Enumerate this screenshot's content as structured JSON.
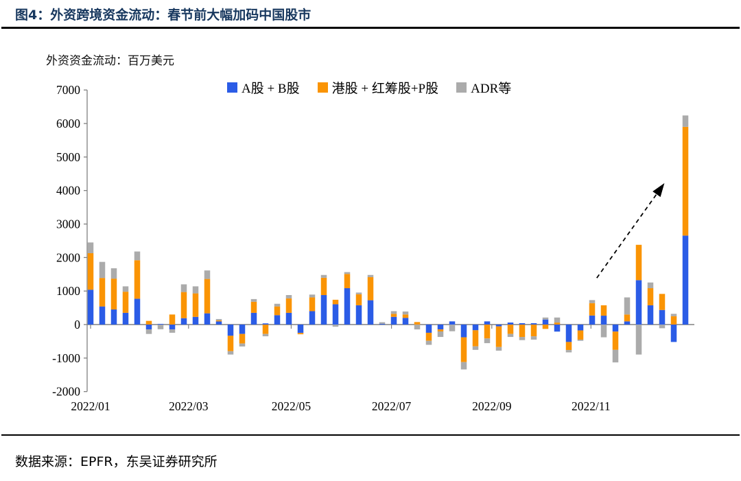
{
  "header": {
    "title": "图4：外资跨境资金流动：春节前大幅加码中国股市"
  },
  "footer": {
    "source": "数据来源：EPFR，东吴证券研究所"
  },
  "chart_data": {
    "type": "bar",
    "stacked": true,
    "unit_label": "外资资金流动：百万美元",
    "ylim": [
      -2000,
      7000
    ],
    "yticks": [
      7000,
      6000,
      5000,
      4000,
      3000,
      2000,
      1000,
      0,
      -1000,
      -2000
    ],
    "grid": false,
    "legend_position": "top",
    "legend": [
      {
        "name": "A股 + B股",
        "color": "#2B5CE6"
      },
      {
        "name": "港股 + 红筹股+P股",
        "color": "#FA9404"
      },
      {
        "name": "ADR等",
        "color": "#ABABAB"
      }
    ],
    "x_ticks": [
      {
        "label": "2022/01",
        "week": 0
      },
      {
        "label": "2022/03",
        "week": 8.4
      },
      {
        "label": "2022/05",
        "week": 17.2
      },
      {
        "label": "2022/07",
        "week": 25.8
      },
      {
        "label": "2022/09",
        "week": 34.4
      },
      {
        "label": "2022/11",
        "week": 42.9
      }
    ],
    "series": [
      {
        "name": "A股 + B股",
        "color": "#2B5CE6",
        "values": [
          1040,
          540,
          450,
          350,
          770,
          -145,
          20,
          -145,
          190,
          230,
          335,
          95,
          -335,
          -280,
          350,
          35,
          280,
          350,
          -250,
          400,
          880,
          605,
          1085,
          575,
          725,
          20,
          230,
          200,
          0,
          -245,
          -145,
          95,
          -380,
          -170,
          95,
          -55,
          60,
          40,
          40,
          150,
          -210,
          -520,
          -175,
          270,
          265,
          -210,
          95,
          1325,
          575,
          435,
          -520,
          2655
        ]
      },
      {
        "name": "港股 + 红筹股+P股",
        "color": "#FA9404",
        "values": [
          1090,
          850,
          920,
          630,
          1150,
          110,
          0,
          300,
          780,
          700,
          1025,
          30,
          -460,
          -285,
          330,
          -280,
          260,
          430,
          -40,
          410,
          515,
          135,
          425,
          330,
          690,
          0,
          90,
          100,
          75,
          -240,
          -60,
          0,
          -740,
          -480,
          -415,
          -615,
          -280,
          -370,
          -350,
          -130,
          60,
          -240,
          -275,
          370,
          310,
          -545,
          205,
          1055,
          510,
          480,
          250,
          3245
        ]
      },
      {
        "name": "ADR等",
        "color": "#ABABAB",
        "values": [
          320,
          480,
          310,
          160,
          260,
          -135,
          -140,
          -100,
          230,
          210,
          255,
          40,
          -100,
          -90,
          80,
          -70,
          80,
          100,
          0,
          85,
          85,
          -65,
          55,
          50,
          65,
          50,
          80,
          90,
          -145,
          -120,
          -165,
          -200,
          -220,
          -105,
          -140,
          -110,
          -90,
          -95,
          -100,
          60,
          150,
          -70,
          -35,
          90,
          -380,
          -375,
          510,
          -895,
          170,
          -110,
          70,
          340
        ]
      }
    ],
    "annotation_arrow": {
      "from": [
        43.4,
        1390
      ],
      "to": [
        49.2,
        4220
      ]
    },
    "n_weeks": 52
  }
}
